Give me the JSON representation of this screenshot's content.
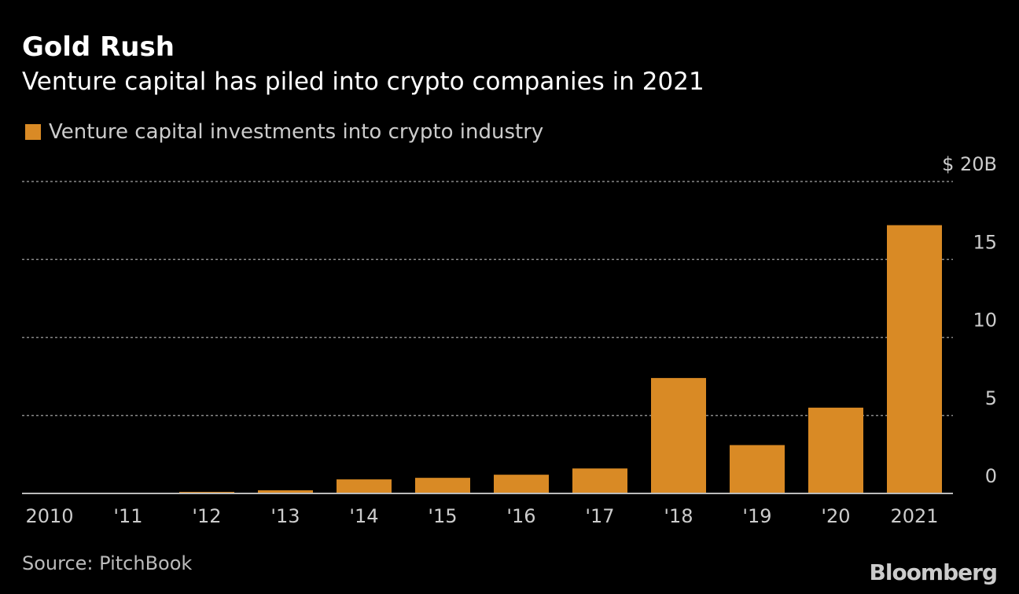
{
  "title": "Gold Rush",
  "subtitle": "Venture capital has piled into crypto companies in 2021",
  "source": "Source: PitchBook",
  "logo": "Bloomberg",
  "chart_data": {
    "type": "bar",
    "categories": [
      "2010",
      "'11",
      "'12",
      "'13",
      "'14",
      "'15",
      "'16",
      "'17",
      "'18",
      "'19",
      "'20",
      "2021"
    ],
    "series": [
      {
        "name": "Venture capital investments into crypto industry",
        "color": "#D98A25",
        "values": [
          0.05,
          0.05,
          0.1,
          0.2,
          0.9,
          1.0,
          1.2,
          1.6,
          7.4,
          3.1,
          5.5,
          17.2
        ]
      }
    ],
    "ylim": [
      0,
      20
    ],
    "yticks": [
      0,
      5,
      10,
      15,
      20
    ],
    "ytick_labels": [
      "0",
      "5",
      "10",
      "15",
      "$ 20B"
    ],
    "y_axis_side": "right",
    "grid": true,
    "legend_position": "top-left"
  }
}
